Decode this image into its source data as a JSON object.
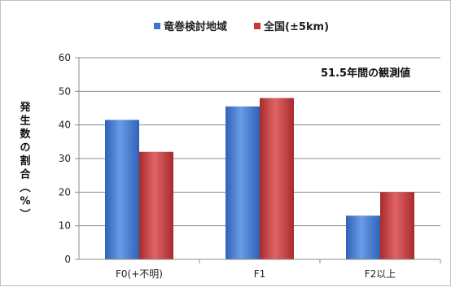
{
  "chart_data": {
    "type": "bar",
    "categories": [
      "F0(+不明)",
      "F1",
      "F2以上"
    ],
    "series": [
      {
        "name": "竜巻検討地域",
        "color": "#4a7fd0",
        "values": [
          41.5,
          45.5,
          13.0
        ]
      },
      {
        "name": "全国(±5km)",
        "color": "#c8383a",
        "values": [
          32.0,
          48.0,
          20.0
        ]
      }
    ],
    "title": "",
    "xlabel": "",
    "ylabel": "発生数の割合(%)",
    "ylim": [
      0,
      60
    ],
    "yticks": [
      0,
      10,
      20,
      30,
      40,
      50,
      60
    ],
    "grid": true,
    "legend_position": "top",
    "annotation": "51.5年間の観測値"
  }
}
